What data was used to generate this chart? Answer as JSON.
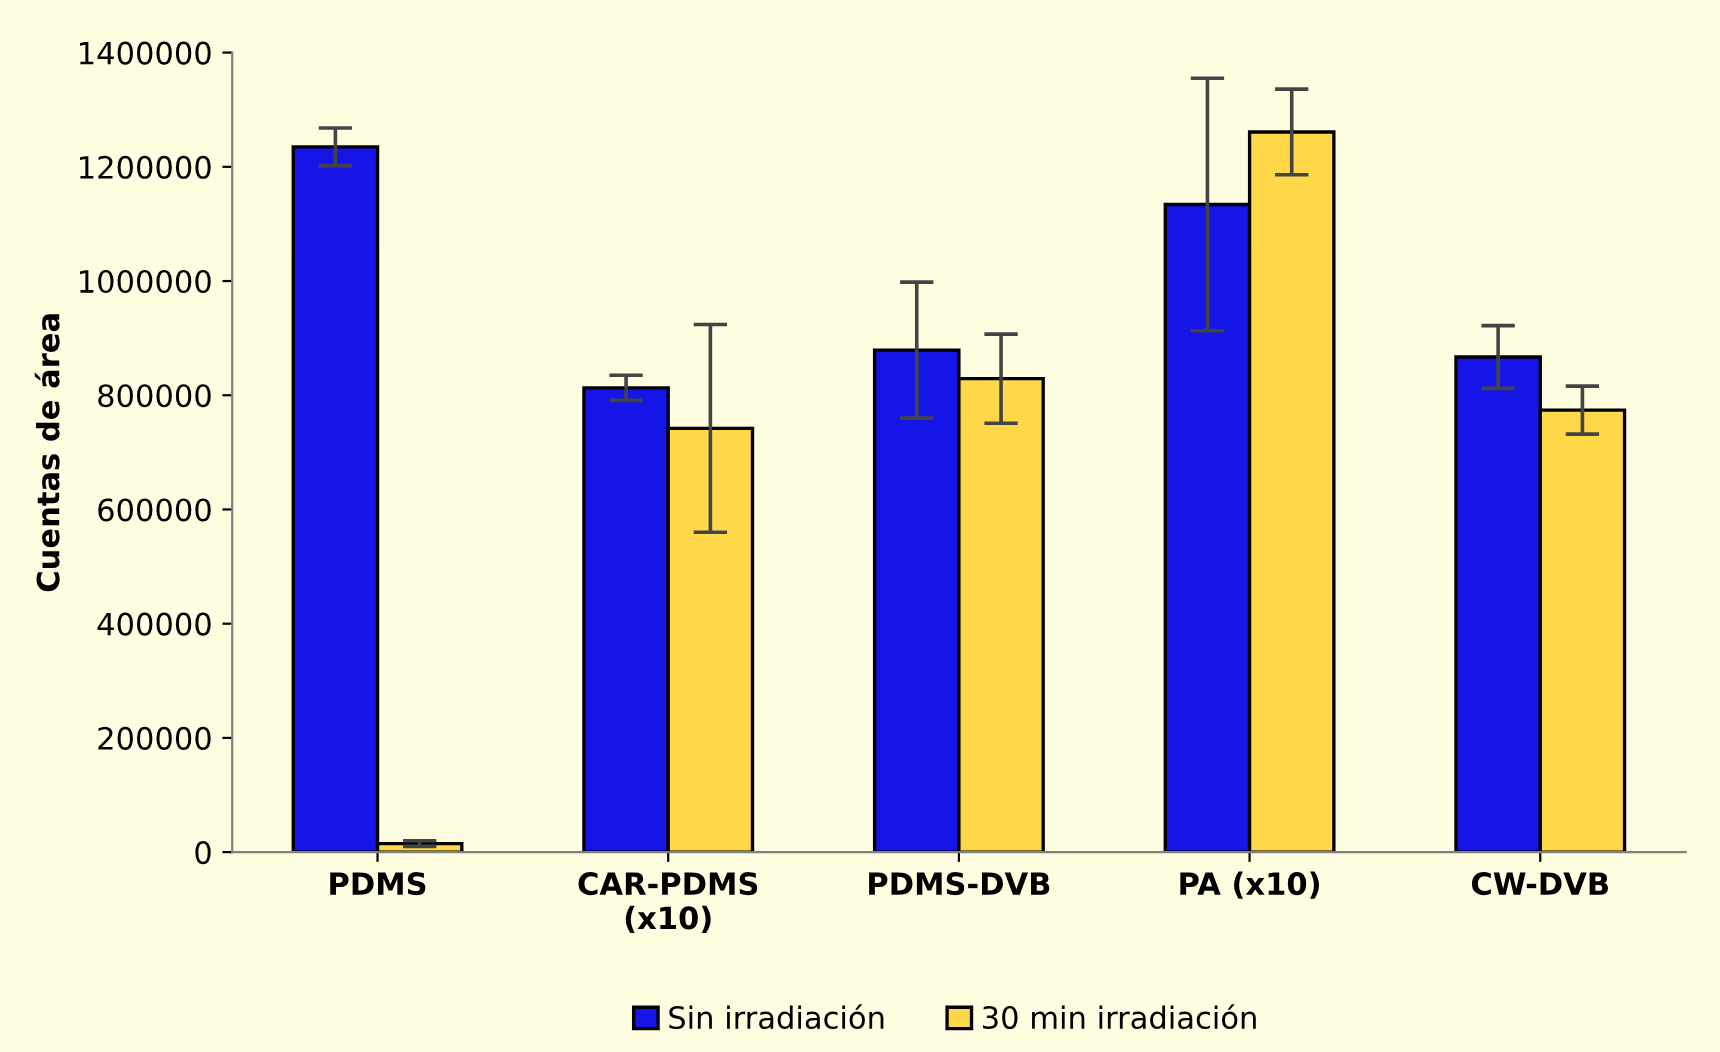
{
  "chart_data": {
    "type": "bar",
    "ylabel": "Cuentas de área",
    "categories": [
      "PDMS",
      "CAR-PDMS\n(x10)",
      "PDMS-DVB",
      "PA (x10)",
      "CW-DVB"
    ],
    "series": [
      {
        "name": "Sin irradiación",
        "color": "#1515e8",
        "values": [
          1235000,
          813000,
          879000,
          1134000,
          867000
        ],
        "errors": [
          33000,
          22000,
          119000,
          221000,
          55000
        ]
      },
      {
        "name": "30 min irradiación",
        "color": "#ffd84a",
        "values": [
          15000,
          742000,
          829000,
          1261000,
          774000
        ],
        "errors": [
          5000,
          182000,
          78000,
          75000,
          42000
        ]
      }
    ],
    "ylim": [
      0,
      1400000
    ],
    "yticks": [
      0,
      200000,
      400000,
      600000,
      800000,
      1000000,
      1200000,
      1400000
    ],
    "grid": false,
    "legend": "bottom"
  }
}
